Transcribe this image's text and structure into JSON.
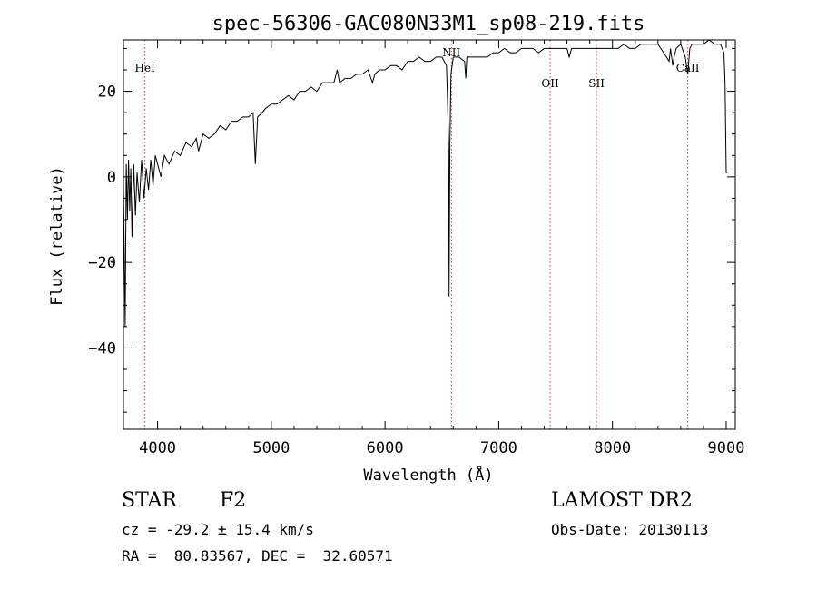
{
  "chart_data": {
    "type": "line",
    "title": "spec-56306-GAC080N33M1_sp08-219.fits",
    "xlabel": "Wavelength (Å)",
    "ylabel": "Flux (relative)",
    "xlim": [
      3700,
      9080
    ],
    "ylim": [
      -59,
      32
    ],
    "x_ticks": [
      4000,
      5000,
      6000,
      7000,
      8000,
      9000
    ],
    "y_ticks": [
      -40,
      -20,
      0,
      20
    ],
    "grid": false,
    "series": [
      {
        "color": "#000000",
        "x": [
          3700,
          3715,
          3725,
          3735,
          3745,
          3755,
          3765,
          3775,
          3790,
          3805,
          3820,
          3840,
          3860,
          3880,
          3900,
          3920,
          3940,
          3960,
          3980,
          4000,
          4030,
          4060,
          4100,
          4150,
          4200,
          4250,
          4300,
          4340,
          4360,
          4400,
          4450,
          4500,
          4550,
          4600,
          4650,
          4700,
          4750,
          4800,
          4840,
          4860,
          4880,
          4920,
          4950,
          5000,
          5050,
          5100,
          5150,
          5200,
          5250,
          5300,
          5350,
          5400,
          5450,
          5500,
          5550,
          5580,
          5600,
          5650,
          5700,
          5750,
          5800,
          5850,
          5890,
          5910,
          5950,
          6000,
          6050,
          6100,
          6150,
          6200,
          6250,
          6300,
          6350,
          6400,
          6450,
          6500,
          6540,
          6550,
          6560,
          6563,
          6570,
          6580,
          6600,
          6650,
          6700,
          6710,
          6720,
          6750,
          6800,
          6850,
          6900,
          6950,
          7000,
          7050,
          7100,
          7150,
          7200,
          7250,
          7300,
          7350,
          7400,
          7450,
          7500,
          7550,
          7600,
          7620,
          7640,
          7700,
          7750,
          7800,
          7850,
          7900,
          7950,
          8000,
          8050,
          8100,
          8150,
          8200,
          8250,
          8300,
          8350,
          8400,
          8450,
          8498,
          8510,
          8530,
          8542,
          8560,
          8600,
          8640,
          8662,
          8680,
          8700,
          8750,
          8800,
          8850,
          8900,
          8950,
          8980,
          8990,
          9000,
          9010
        ],
        "y": [
          -2,
          -35,
          3,
          -10,
          4,
          -8,
          2,
          -14,
          3,
          -9,
          1,
          -6,
          4,
          -5,
          2,
          -3,
          4,
          -2,
          5,
          3,
          0,
          5,
          3,
          6,
          5,
          8,
          7,
          9,
          6,
          10,
          9,
          10,
          12,
          11,
          13,
          13,
          14,
          14,
          15,
          3,
          14,
          15,
          16,
          17,
          17,
          18,
          19,
          18,
          20,
          20,
          21,
          20,
          22,
          22,
          22,
          25,
          22,
          23,
          23,
          24,
          24,
          25,
          22,
          24,
          25,
          25,
          26,
          26,
          25,
          27,
          27,
          28,
          27,
          27,
          28,
          28,
          26,
          18,
          6,
          -28,
          8,
          24,
          28,
          28,
          27,
          23,
          28,
          28,
          28,
          28,
          28,
          29,
          29,
          30,
          29,
          29,
          30,
          30,
          30,
          29,
          30,
          30,
          30,
          30,
          30,
          28,
          30,
          30,
          30,
          30,
          30,
          30,
          30,
          30,
          30,
          31,
          30,
          30,
          31,
          31,
          31,
          31,
          29,
          27,
          30,
          26,
          28,
          30,
          31,
          28,
          24,
          30,
          31,
          31,
          31,
          32,
          31,
          31,
          29,
          22,
          1,
          1
        ]
      }
    ],
    "annotations": [
      {
        "label": "HeI",
        "x": 3889
      },
      {
        "label": "NII",
        "x": 6584
      },
      {
        "label": "OII",
        "x": 7452
      },
      {
        "label": "SII",
        "x": 7860
      },
      {
        "label": "CaII",
        "x": 8662
      }
    ]
  },
  "info": {
    "class_label": "STAR",
    "subclass_label": "F2",
    "survey_label": "LAMOST DR2",
    "redshift_text": "cz = -29.2 ± 15.4 km/s",
    "obs_date_text": "Obs-Date: 20130113",
    "coords_text": "RA =  80.83567, DEC =  32.60571"
  }
}
